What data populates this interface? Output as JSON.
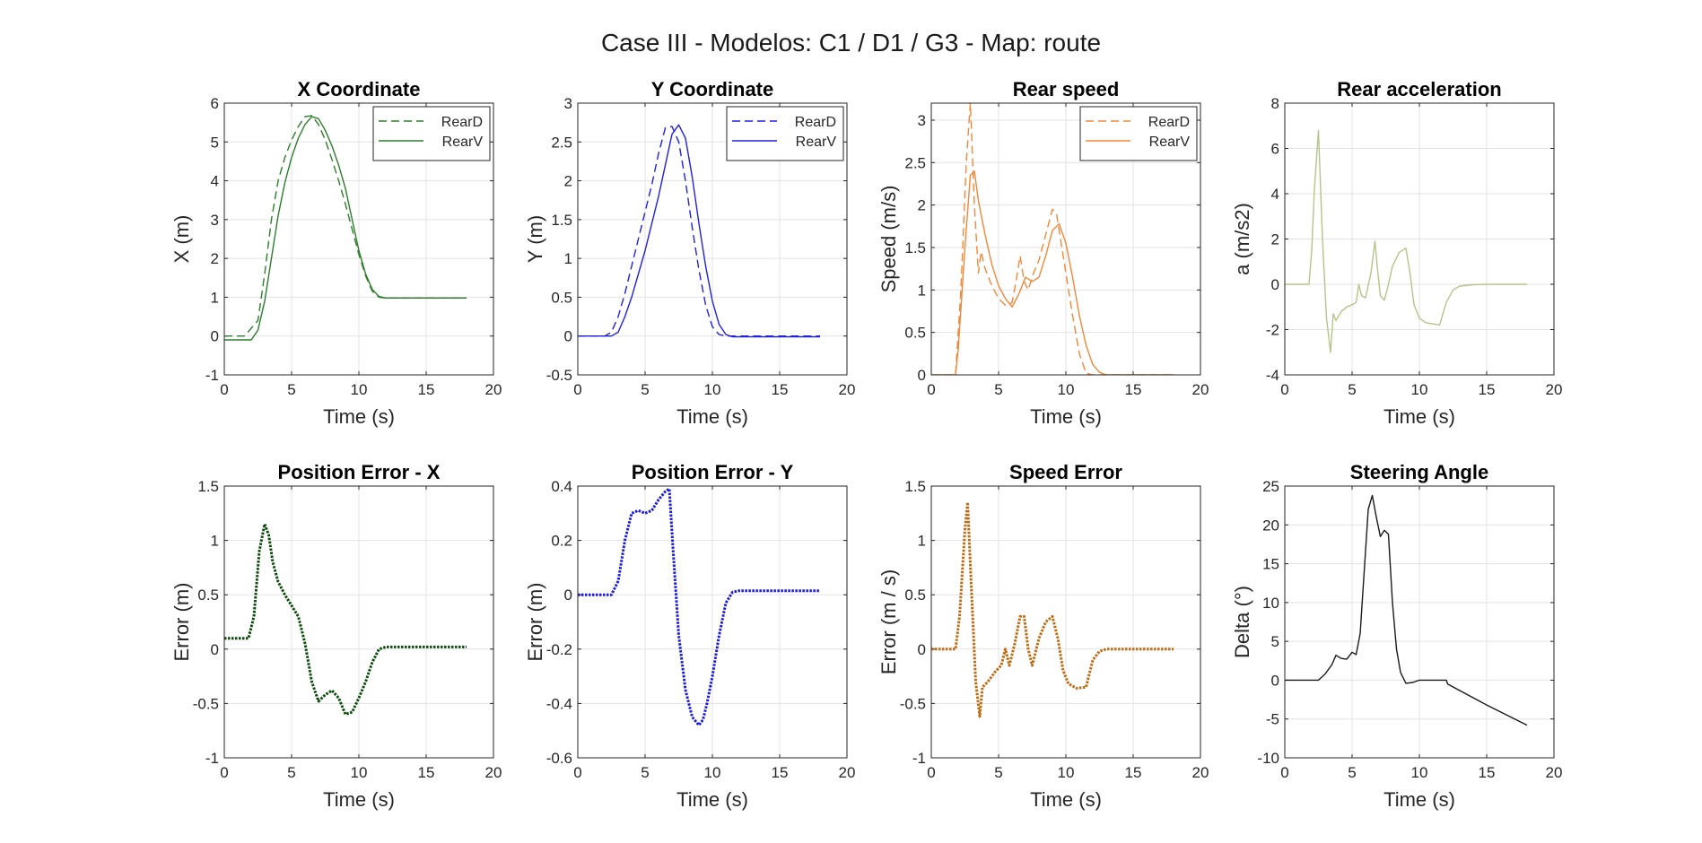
{
  "figure": {
    "title": "Case III - Modelos: C1 / D1 / G3 - Map: route"
  },
  "chart_data": [
    {
      "type": "line",
      "title": "X Coordinate",
      "xlabel": "Time (s)",
      "ylabel": "X (m)",
      "xlim": [
        0,
        20
      ],
      "ylim": [
        -1,
        6
      ],
      "xticks": [
        "0",
        "5",
        "10",
        "15",
        "20"
      ],
      "yticks": [
        "-1",
        "0",
        "1",
        "2",
        "3",
        "4",
        "5",
        "6"
      ],
      "grid": true,
      "legend": "top-right",
      "series": [
        {
          "name": "RearD",
          "color": "#2e7d2e",
          "dash": "dashed",
          "x": [
            0,
            1.5,
            2.5,
            3,
            3.5,
            4,
            4.5,
            5,
            5.5,
            6,
            6.5,
            7,
            7.5,
            8,
            8.5,
            9,
            9.5,
            10,
            10.5,
            11,
            11.5,
            12,
            18
          ],
          "y": [
            0,
            0,
            0.4,
            1.6,
            3.0,
            4.0,
            4.6,
            5.05,
            5.4,
            5.65,
            5.68,
            5.45,
            5.05,
            4.55,
            4.0,
            3.4,
            2.75,
            2.1,
            1.55,
            1.15,
            1.0,
            0.98,
            0.98
          ]
        },
        {
          "name": "RearV",
          "color": "#2e7d2e",
          "dash": "solid",
          "x": [
            0,
            2,
            2.5,
            3,
            3.5,
            4,
            4.5,
            5,
            5.5,
            6,
            6.5,
            7,
            7.5,
            8,
            8.5,
            9,
            9.5,
            10,
            10.5,
            11,
            11.5,
            12,
            18
          ],
          "y": [
            -0.1,
            -0.1,
            0.15,
            0.9,
            2.0,
            3.1,
            3.95,
            4.6,
            5.1,
            5.45,
            5.65,
            5.6,
            5.3,
            4.9,
            4.4,
            3.8,
            3.0,
            2.2,
            1.6,
            1.2,
            1.02,
            0.98,
            0.98
          ]
        }
      ]
    },
    {
      "type": "line",
      "title": "Y Coordinate",
      "xlabel": "Time (s)",
      "ylabel": "Y (m)",
      "xlim": [
        0,
        20
      ],
      "ylim": [
        -0.5,
        3
      ],
      "xticks": [
        "0",
        "5",
        "10",
        "15",
        "20"
      ],
      "yticks": [
        "-0.5",
        "0",
        "0.5",
        "1",
        "1.5",
        "2",
        "2.5",
        "3"
      ],
      "grid": true,
      "legend": "top-right",
      "series": [
        {
          "name": "RearD",
          "color": "#2020e0",
          "dash": "dashed",
          "x": [
            0,
            2,
            2.5,
            3,
            3.5,
            4,
            4.5,
            5,
            5.5,
            6,
            6.5,
            7,
            7.5,
            8,
            8.5,
            9,
            9.5,
            10,
            10.5,
            11,
            11.5,
            12,
            18
          ],
          "y": [
            0,
            0,
            0.05,
            0.25,
            0.55,
            0.9,
            1.25,
            1.6,
            1.95,
            2.35,
            2.68,
            2.7,
            2.5,
            2.0,
            1.4,
            0.85,
            0.4,
            0.12,
            0.02,
            0.0,
            0.0,
            0.0,
            0.0
          ]
        },
        {
          "name": "RearV",
          "color": "#2020e0",
          "dash": "solid",
          "x": [
            0,
            2.5,
            3,
            3.5,
            4,
            4.5,
            5,
            5.5,
            6,
            6.5,
            7,
            7.5,
            8,
            8.5,
            9,
            9.5,
            10,
            10.5,
            11,
            11.5,
            12,
            18
          ],
          "y": [
            0,
            0,
            0.05,
            0.25,
            0.5,
            0.8,
            1.1,
            1.45,
            1.8,
            2.2,
            2.6,
            2.72,
            2.55,
            2.05,
            1.45,
            0.9,
            0.45,
            0.15,
            0.02,
            -0.01,
            -0.01,
            -0.01
          ]
        }
      ]
    },
    {
      "type": "line",
      "title": "Rear speed",
      "xlabel": "Time (s)",
      "ylabel": "Speed (m/s)",
      "xlim": [
        0,
        20
      ],
      "ylim": [
        0,
        3.2
      ],
      "xticks": [
        "0",
        "5",
        "10",
        "15",
        "20"
      ],
      "yticks": [
        "0",
        "0.5",
        "1",
        "1.5",
        "2",
        "2.5",
        "3"
      ],
      "grid": true,
      "legend": "top-right",
      "series": [
        {
          "name": "RearD",
          "color": "#f0883a",
          "dash": "dashed",
          "x": [
            0,
            1.8,
            2.2,
            2.6,
            2.9,
            3.2,
            3.5,
            3.7,
            4.0,
            4.5,
            5.0,
            5.5,
            6.0,
            6.3,
            6.6,
            6.9,
            7.2,
            7.6,
            8.0,
            8.5,
            9.0,
            9.3,
            9.6,
            10.0,
            10.5,
            11.0,
            11.5,
            12,
            18
          ],
          "y": [
            0,
            0,
            1.0,
            2.5,
            3.2,
            2.0,
            1.2,
            1.45,
            1.25,
            1.05,
            0.9,
            0.82,
            0.85,
            1.1,
            1.4,
            1.1,
            1.0,
            1.2,
            1.35,
            1.65,
            1.95,
            1.9,
            1.6,
            1.2,
            0.7,
            0.25,
            0.02,
            0,
            0
          ]
        },
        {
          "name": "RearV",
          "color": "#f0883a",
          "dash": "solid",
          "x": [
            0,
            1.8,
            2.0,
            2.5,
            2.9,
            3.2,
            3.5,
            4.0,
            4.5,
            5.0,
            5.5,
            6.0,
            6.5,
            7.0,
            7.5,
            8.0,
            8.5,
            9.0,
            9.5,
            10.0,
            10.5,
            11.0,
            11.5,
            12.0,
            12.5,
            13,
            18
          ],
          "y": [
            0,
            0,
            0.3,
            1.5,
            2.35,
            2.4,
            2.05,
            1.65,
            1.3,
            1.05,
            0.9,
            0.8,
            0.95,
            1.15,
            1.1,
            1.15,
            1.4,
            1.7,
            1.78,
            1.55,
            1.15,
            0.7,
            0.35,
            0.12,
            0.03,
            0.0,
            0.0
          ]
        }
      ]
    },
    {
      "type": "line",
      "title": "Rear acceleration",
      "xlabel": "Time (s)",
      "ylabel": "a (m/s2)",
      "xlim": [
        0,
        20
      ],
      "ylim": [
        -4,
        8
      ],
      "xticks": [
        "0",
        "5",
        "10",
        "15",
        "20"
      ],
      "yticks": [
        "-4",
        "-2",
        "0",
        "2",
        "4",
        "6",
        "8"
      ],
      "grid": true,
      "legend": "none",
      "series": [
        {
          "color": "#b5c48a",
          "dash": "solid",
          "x": [
            0,
            1.8,
            2.0,
            2.2,
            2.5,
            2.8,
            3.1,
            3.4,
            3.6,
            3.8,
            4.2,
            4.6,
            5.0,
            5.3,
            5.5,
            5.7,
            6.0,
            6.4,
            6.7,
            6.9,
            7.1,
            7.4,
            7.7,
            8.0,
            8.5,
            9.0,
            9.3,
            9.6,
            10.0,
            10.5,
            11.0,
            11.5,
            12.0,
            12.5,
            13.0,
            14.0,
            15.0,
            18.0
          ],
          "y": [
            0,
            0,
            1.5,
            4.2,
            6.8,
            2.0,
            -1.5,
            -3.0,
            -1.3,
            -1.6,
            -1.2,
            -1.0,
            -0.9,
            -0.8,
            0.0,
            -0.5,
            -0.6,
            0.5,
            1.9,
            0.6,
            -0.5,
            -0.7,
            0.0,
            0.8,
            1.4,
            1.6,
            0.5,
            -0.9,
            -1.5,
            -1.7,
            -1.75,
            -1.8,
            -0.8,
            -0.25,
            -0.08,
            -0.02,
            0,
            0
          ]
        }
      ]
    },
    {
      "type": "line",
      "title": "Position Error - X",
      "xlabel": "Time (s)",
      "ylabel": "Error (m)",
      "xlim": [
        0,
        20
      ],
      "ylim": [
        -1,
        1.5
      ],
      "xticks": [
        "0",
        "5",
        "10",
        "15",
        "20"
      ],
      "yticks": [
        "-1",
        "-0.5",
        "0",
        "0.5",
        "1",
        "1.5"
      ],
      "grid": true,
      "legend": "none",
      "series": [
        {
          "color": "#0a4a0a",
          "dash": "dotted",
          "x": [
            0,
            1.8,
            2.2,
            2.6,
            3.0,
            3.3,
            3.6,
            4.0,
            4.5,
            5.0,
            5.5,
            6.0,
            6.5,
            7.0,
            7.5,
            8.0,
            8.5,
            9.0,
            9.5,
            10.0,
            10.5,
            11.0,
            11.5,
            12.0,
            12.5,
            13.0,
            14.0,
            18.0
          ],
          "y": [
            0.1,
            0.1,
            0.3,
            0.9,
            1.15,
            1.05,
            0.8,
            0.62,
            0.5,
            0.4,
            0.3,
            0.05,
            -0.3,
            -0.48,
            -0.42,
            -0.38,
            -0.45,
            -0.6,
            -0.58,
            -0.45,
            -0.3,
            -0.12,
            0.0,
            0.02,
            0.02,
            0.02,
            0.02,
            0.02
          ]
        }
      ]
    },
    {
      "type": "line",
      "title": "Position Error - Y",
      "xlabel": "Time (s)",
      "ylabel": "Error (m)",
      "xlim": [
        0,
        20
      ],
      "ylim": [
        -0.6,
        0.4
      ],
      "xticks": [
        "0",
        "5",
        "10",
        "15",
        "20"
      ],
      "yticks": [
        "-0.6",
        "-0.4",
        "-0.2",
        "0",
        "0.2",
        "0.4"
      ],
      "grid": true,
      "legend": "none",
      "series": [
        {
          "color": "#1a1ae0",
          "dash": "dotted",
          "x": [
            0,
            2.5,
            3.0,
            3.5,
            4.0,
            4.5,
            5.0,
            5.5,
            6.0,
            6.5,
            6.8,
            7.1,
            7.5,
            8.0,
            8.5,
            9.0,
            9.3,
            9.6,
            10.0,
            10.5,
            11.0,
            11.5,
            12.0,
            13.0,
            15.0,
            18.0
          ],
          "y": [
            0,
            0,
            0.05,
            0.2,
            0.3,
            0.31,
            0.3,
            0.31,
            0.35,
            0.38,
            0.39,
            0.15,
            -0.15,
            -0.35,
            -0.45,
            -0.48,
            -0.46,
            -0.4,
            -0.3,
            -0.15,
            -0.03,
            0.01,
            0.015,
            0.015,
            0.015,
            0.015
          ]
        }
      ]
    },
    {
      "type": "line",
      "title": "Speed Error",
      "xlabel": "Time (s)",
      "ylabel": "Error (m / s)",
      "xlim": [
        0,
        20
      ],
      "ylim": [
        -1,
        1.5
      ],
      "xticks": [
        "0",
        "5",
        "10",
        "15",
        "20"
      ],
      "yticks": [
        "-1",
        "-0.5",
        "0",
        "0.5",
        "1",
        "1.5"
      ],
      "grid": true,
      "legend": "none",
      "series": [
        {
          "color": "#c06a10",
          "dash": "dotted",
          "x": [
            0,
            1.8,
            2.1,
            2.5,
            2.7,
            3.0,
            3.3,
            3.6,
            3.8,
            4.2,
            4.8,
            5.2,
            5.5,
            5.8,
            6.2,
            6.6,
            6.9,
            7.2,
            7.5,
            8.0,
            8.5,
            9.0,
            9.4,
            9.8,
            10.2,
            10.8,
            11.5,
            12.0,
            12.5,
            13.0,
            14.0,
            18.0
          ],
          "y": [
            0,
            0,
            0.3,
            1.1,
            1.35,
            0.5,
            -0.3,
            -0.62,
            -0.35,
            -0.3,
            -0.2,
            -0.15,
            0.0,
            -0.15,
            0.05,
            0.3,
            0.3,
            0.0,
            -0.15,
            0.1,
            0.25,
            0.3,
            0.1,
            -0.2,
            -0.32,
            -0.36,
            -0.35,
            -0.1,
            -0.02,
            0.0,
            0.0,
            0.0
          ]
        }
      ]
    },
    {
      "type": "line",
      "title": "Steering Angle",
      "xlabel": "Time (s)",
      "ylabel": "Delta (°)",
      "xlim": [
        0,
        20
      ],
      "ylim": [
        -10,
        25
      ],
      "xticks": [
        "0",
        "5",
        "10",
        "15",
        "20"
      ],
      "yticks": [
        "-10",
        "-5",
        "0",
        "5",
        "10",
        "15",
        "20",
        "25"
      ],
      "grid": true,
      "legend": "none",
      "series": [
        {
          "color": "#1a1a1a",
          "dash": "solid",
          "x": [
            0,
            2.5,
            3.0,
            3.5,
            3.8,
            4.2,
            4.6,
            5.0,
            5.3,
            5.6,
            5.9,
            6.2,
            6.5,
            6.8,
            7.1,
            7.4,
            7.7,
            8.0,
            8.3,
            8.6,
            9.0,
            9.5,
            10.0,
            11.0,
            12.0,
            12.1,
            15.0,
            18.0
          ],
          "y": [
            0,
            0,
            0.8,
            2.0,
            3.2,
            2.8,
            2.7,
            3.6,
            3.3,
            6.0,
            14.0,
            22.0,
            23.8,
            21.0,
            18.5,
            19.3,
            18.8,
            10.0,
            4.0,
            1.0,
            -0.4,
            -0.3,
            0.0,
            0.0,
            0.0,
            -0.5,
            -3.2,
            -5.8
          ]
        }
      ]
    }
  ]
}
